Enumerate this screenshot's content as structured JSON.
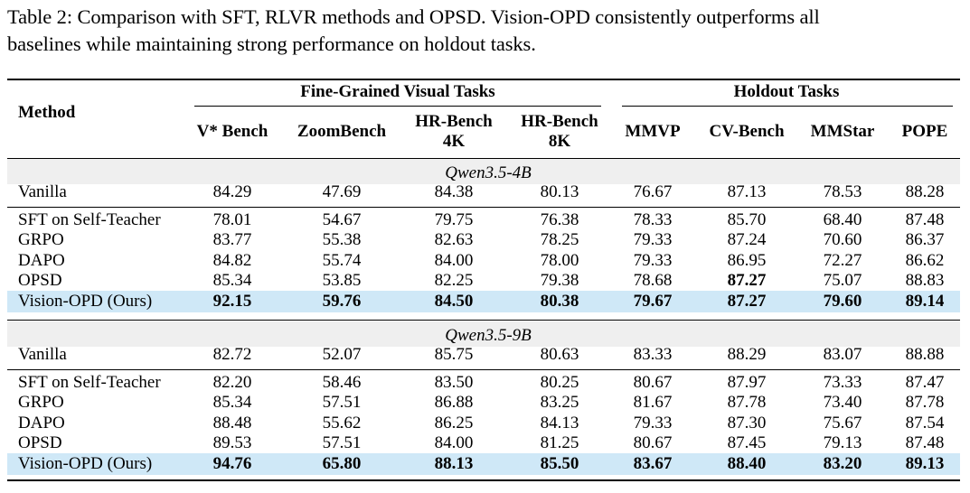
{
  "caption": {
    "line1": "Table 2: Comparison with SFT, RLVR methods and OPSD. Vision-OPD consistently outperforms all",
    "line2": "baselines while maintaining strong performance on holdout tasks."
  },
  "header": {
    "method": "Method",
    "group_fine": "Fine-Grained Visual Tasks",
    "group_holdout": "Holdout Tasks",
    "columns": [
      [
        "V* Bench"
      ],
      [
        "ZoomBench"
      ],
      [
        "HR-Bench",
        "4K"
      ],
      [
        "HR-Bench",
        "8K"
      ],
      [
        "MMVP"
      ],
      [
        "CV-Bench"
      ],
      [
        "MMStar"
      ],
      [
        "POPE"
      ]
    ]
  },
  "sections": [
    {
      "model": "Qwen3.5-4B",
      "vanilla": {
        "method": "Vanilla",
        "values": [
          "84.29",
          "47.69",
          "84.38",
          "80.13",
          "76.67",
          "87.13",
          "78.53",
          "88.28"
        ]
      },
      "rows": [
        {
          "method": "SFT on Self-Teacher",
          "values": [
            "78.01",
            "54.67",
            "79.75",
            "76.38",
            "78.33",
            "85.70",
            "68.40",
            "87.48"
          ]
        },
        {
          "method": "GRPO",
          "values": [
            "83.77",
            "55.38",
            "82.63",
            "78.25",
            "79.33",
            "87.24",
            "70.60",
            "86.37"
          ]
        },
        {
          "method": "DAPO",
          "values": [
            "84.82",
            "55.74",
            "84.00",
            "78.00",
            "79.33",
            "86.95",
            "72.27",
            "86.62"
          ]
        },
        {
          "method": "OPSD",
          "values": [
            "85.34",
            "53.85",
            "82.25",
            "79.38",
            "78.68",
            "87.27",
            "75.07",
            "88.83"
          ]
        }
      ],
      "ours": {
        "method": "Vision-OPD (Ours)",
        "values": [
          "92.15",
          "59.76",
          "84.50",
          "80.38",
          "79.67",
          "87.27",
          "79.60",
          "89.14"
        ]
      }
    },
    {
      "model": "Qwen3.5-9B",
      "vanilla": {
        "method": "Vanilla",
        "values": [
          "82.72",
          "52.07",
          "85.75",
          "80.63",
          "83.33",
          "88.29",
          "83.07",
          "88.88"
        ]
      },
      "rows": [
        {
          "method": "SFT on Self-Teacher",
          "values": [
            "82.20",
            "58.46",
            "83.50",
            "80.25",
            "80.67",
            "87.97",
            "73.33",
            "87.47"
          ]
        },
        {
          "method": "GRPO",
          "values": [
            "85.34",
            "57.51",
            "86.88",
            "83.25",
            "81.67",
            "87.78",
            "73.40",
            "87.78"
          ]
        },
        {
          "method": "DAPO",
          "values": [
            "88.48",
            "55.62",
            "86.25",
            "84.13",
            "79.33",
            "87.30",
            "75.67",
            "87.54"
          ]
        },
        {
          "method": "OPSD",
          "values": [
            "89.53",
            "57.51",
            "84.00",
            "81.25",
            "80.67",
            "87.45",
            "79.13",
            "87.48"
          ]
        }
      ],
      "ours": {
        "method": "Vision-OPD (Ours)",
        "values": [
          "94.76",
          "65.80",
          "88.13",
          "85.50",
          "83.67",
          "88.40",
          "83.20",
          "89.13"
        ]
      }
    }
  ]
}
